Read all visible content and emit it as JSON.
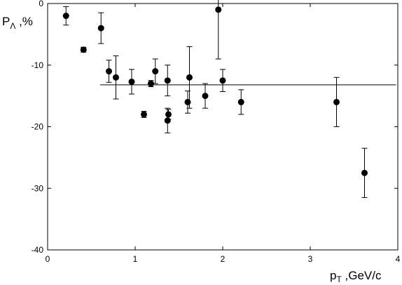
{
  "chart_data": {
    "type": "scatter",
    "title": "",
    "xlabel": {
      "main": "p",
      "sub": "T",
      "rest": " ,GeV/c"
    },
    "ylabel": {
      "main": "P",
      "sub": "Λ",
      "rest": " ,%"
    },
    "xlim": [
      0,
      4
    ],
    "ylim": [
      -40,
      0
    ],
    "x_ticks": [
      0,
      1,
      2,
      3,
      4
    ],
    "y_ticks": [
      0,
      -10,
      -20,
      -30,
      -40
    ],
    "x_tick_labels": [
      "0",
      "1",
      "2",
      "3",
      "4"
    ],
    "y_tick_labels": [
      "0",
      "-10",
      "-20",
      "-30",
      "-40"
    ],
    "grid": false,
    "legend": "none",
    "series": [
      {
        "points": [
          {
            "x": 0.21,
            "y": -2.0,
            "err": 1.5
          },
          {
            "x": 0.41,
            "y": -7.5,
            "err": 0.4
          },
          {
            "x": 0.61,
            "y": -4.0,
            "err": 2.5
          },
          {
            "x": 0.7,
            "y": -11.0,
            "err": 1.8
          },
          {
            "x": 0.78,
            "y": -12.0,
            "err": 3.5
          },
          {
            "x": 0.96,
            "y": -12.7,
            "err": 2.0
          },
          {
            "x": 1.1,
            "y": -18.0,
            "err": 0.5
          },
          {
            "x": 1.18,
            "y": -13.0,
            "err": 0.5
          },
          {
            "x": 1.23,
            "y": -11.0,
            "err": 2.0
          },
          {
            "x": 1.37,
            "y": -12.5,
            "err": 2.5
          },
          {
            "x": 1.37,
            "y": -19.0,
            "err": 2.0
          },
          {
            "x": 1.38,
            "y": -18.0,
            "err": 0.8
          },
          {
            "x": 1.6,
            "y": -16.0,
            "err": 1.8
          },
          {
            "x": 1.62,
            "y": -12.0,
            "err": 5.0
          },
          {
            "x": 1.8,
            "y": -15.0,
            "err": 2.0
          },
          {
            "x": 1.95,
            "y": -1.0,
            "err": 8.0
          },
          {
            "x": 2.0,
            "y": -12.5,
            "err": 1.8
          },
          {
            "x": 2.21,
            "y": -16.0,
            "err": 2.0
          },
          {
            "x": 3.3,
            "y": -16.0,
            "err": 4.0
          },
          {
            "x": 3.62,
            "y": -27.5,
            "err": 4.0
          }
        ]
      }
    ],
    "reference_line": {
      "y": -13.2,
      "x_start": 0.6,
      "x_end": 3.98
    }
  }
}
